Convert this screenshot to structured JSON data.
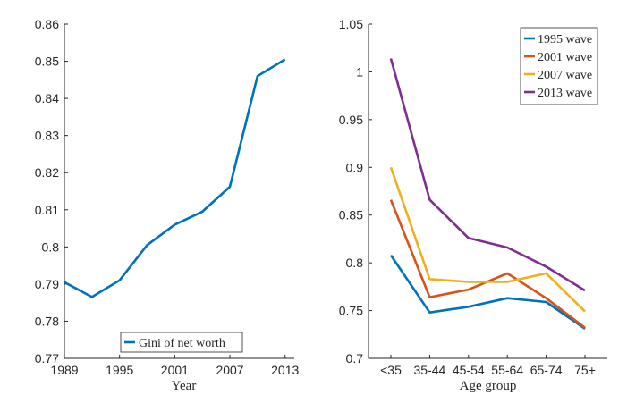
{
  "chart_data": [
    {
      "type": "line",
      "title": "",
      "xlabel": "Year",
      "ylabel": "",
      "xlim": [
        1989,
        2014
      ],
      "ylim": [
        0.77,
        0.86
      ],
      "x_ticks": [
        1989,
        1995,
        2001,
        2007,
        2013
      ],
      "y_ticks": [
        0.77,
        0.78,
        0.79,
        0.8,
        0.81,
        0.82,
        0.83,
        0.84,
        0.85,
        0.86
      ],
      "y_tick_labels": [
        "0.77",
        "0.78",
        "0.79",
        "0.8",
        "0.81",
        "0.82",
        "0.83",
        "0.84",
        "0.85",
        "0.86"
      ],
      "legend_position": "bottom-center",
      "grid": false,
      "series": [
        {
          "name": "Gini of net worth",
          "color": "#0072BD",
          "x": [
            1989,
            1992,
            1995,
            1998,
            2001,
            2004,
            2007,
            2010,
            2013
          ],
          "values": [
            0.7905,
            0.7865,
            0.791,
            0.8005,
            0.806,
            0.8095,
            0.8162,
            0.846,
            0.8505
          ]
        }
      ]
    },
    {
      "type": "line",
      "title": "",
      "xlabel": "Age group",
      "ylabel": "",
      "categories": [
        "<35",
        "35-44",
        "45-54",
        "55-64",
        "65-74",
        "75+"
      ],
      "ylim": [
        0.7,
        1.05
      ],
      "y_ticks": [
        0.7,
        0.75,
        0.8,
        0.85,
        0.9,
        0.95,
        1,
        1.05
      ],
      "y_tick_labels": [
        "0.7",
        "0.75",
        "0.8",
        "0.85",
        "0.9",
        "0.95",
        "1",
        "1.05"
      ],
      "legend_position": "top-right",
      "grid": false,
      "series": [
        {
          "name": "1995 wave",
          "color": "#0072BD",
          "values": [
            0.808,
            0.748,
            0.754,
            0.763,
            0.759,
            0.731
          ]
        },
        {
          "name": "2001 wave",
          "color": "#D95319",
          "values": [
            0.866,
            0.764,
            0.772,
            0.789,
            0.763,
            0.732
          ]
        },
        {
          "name": "2007 wave",
          "color": "#EDB120",
          "values": [
            0.9,
            0.783,
            0.78,
            0.78,
            0.789,
            0.749
          ]
        },
        {
          "name": "2013 wave",
          "color": "#7E2F8E",
          "values": [
            1.014,
            0.866,
            0.826,
            0.816,
            0.796,
            0.771
          ]
        }
      ]
    }
  ]
}
